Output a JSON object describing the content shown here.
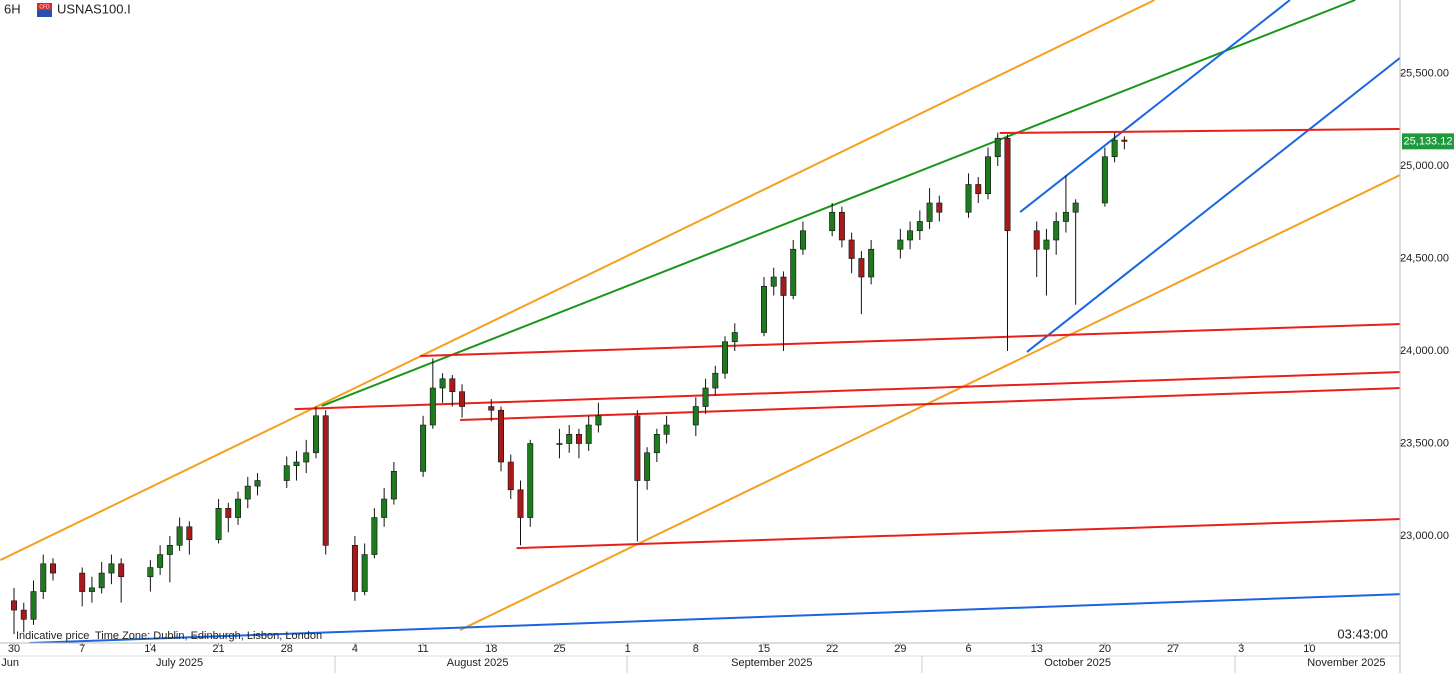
{
  "header": {
    "timeframe": "6H",
    "icon_text": "CFD",
    "symbol": "USNAS100.I"
  },
  "footer": {
    "price_note": "Indicative price",
    "time_zone": "Time Zone: Dublin, Edinburgh, Lisbon, London",
    "clock": "03:43:00"
  },
  "chart_data": {
    "type": "candlestick",
    "x": [
      0,
      1,
      2,
      3,
      4,
      7,
      8,
      9,
      10,
      11,
      14,
      15,
      16,
      17,
      18,
      21,
      22,
      23,
      24,
      25,
      28,
      29,
      30,
      31,
      32,
      35,
      36,
      37,
      38,
      39,
      42,
      43,
      44,
      45,
      46,
      49,
      50,
      51,
      52,
      53,
      56,
      57,
      58,
      59,
      60,
      64,
      65,
      66,
      67,
      70,
      71,
      72,
      73,
      74,
      77,
      78,
      79,
      80,
      81,
      84,
      85,
      86,
      87,
      88,
      91,
      92,
      93,
      94,
      95,
      98,
      99,
      100,
      101,
      102,
      105,
      106,
      107,
      108,
      109,
      112,
      113,
      114
    ],
    "open": [
      22650,
      22600,
      22550,
      22700,
      22850,
      22800,
      22700,
      22720,
      22800,
      22850,
      22780,
      22830,
      22900,
      22950,
      23050,
      22980,
      23150,
      23100,
      23200,
      23270,
      23300,
      23380,
      23400,
      23450,
      23650,
      22950,
      22700,
      22900,
      23100,
      23200,
      23350,
      23600,
      23800,
      23850,
      23780,
      23700,
      23680,
      23400,
      23250,
      23100,
      23500,
      23500,
      23550,
      23500,
      23600,
      23650,
      23300,
      23450,
      23550,
      23600,
      23700,
      23800,
      23880,
      24050,
      24100,
      24350,
      24400,
      24300,
      24550,
      24650,
      24750,
      24600,
      24500,
      24400,
      24550,
      24600,
      24650,
      24700,
      24800,
      24750,
      24900,
      24850,
      25050,
      25150,
      24650,
      24550,
      24600,
      24700,
      24750,
      24800,
      25050,
      25140
    ],
    "high": [
      22720,
      22640,
      22760,
      22900,
      22880,
      22830,
      22780,
      22860,
      22900,
      22880,
      22870,
      22950,
      23000,
      23100,
      23080,
      23200,
      23180,
      23240,
      23320,
      23340,
      23430,
      23460,
      23520,
      23700,
      23680,
      23000,
      22960,
      23150,
      23260,
      23400,
      23650,
      23960,
      23880,
      23870,
      23820,
      23740,
      23700,
      23440,
      23300,
      23520,
      23580,
      23600,
      23580,
      23650,
      23720,
      23680,
      23480,
      23580,
      23650,
      23750,
      23850,
      23920,
      24080,
      24150,
      24400,
      24450,
      24430,
      24600,
      24700,
      24800,
      24780,
      24640,
      24540,
      24600,
      24660,
      24700,
      24760,
      24880,
      24840,
      24960,
      24940,
      25100,
      25180,
      25170,
      24700,
      24660,
      24750,
      24950,
      24820,
      25100,
      25180,
      25160
    ],
    "low": [
      22470,
      22480,
      22520,
      22660,
      22760,
      22620,
      22640,
      22690,
      22740,
      22640,
      22700,
      22790,
      22750,
      22920,
      22900,
      22960,
      23020,
      23060,
      23150,
      23220,
      23260,
      23300,
      23340,
      23420,
      22900,
      22650,
      22680,
      22880,
      23050,
      23170,
      23320,
      23580,
      23720,
      23700,
      23640,
      23620,
      23350,
      23200,
      22950,
      23050,
      23420,
      23450,
      23420,
      23460,
      23560,
      22970,
      23250,
      23400,
      23500,
      23540,
      23660,
      23760,
      23850,
      24000,
      24080,
      24300,
      24000,
      24280,
      24520,
      24620,
      24560,
      24420,
      24200,
      24360,
      24500,
      24550,
      24600,
      24660,
      24700,
      24720,
      24800,
      24820,
      25000,
      24000,
      24400,
      24300,
      24520,
      24640,
      24250,
      24780,
      25020,
      25090
    ],
    "close": [
      22600,
      22550,
      22700,
      22850,
      22800,
      22700,
      22720,
      22800,
      22850,
      22780,
      22830,
      22900,
      22950,
      23050,
      22980,
      23150,
      23100,
      23200,
      23270,
      23300,
      23380,
      23400,
      23450,
      23650,
      22950,
      22700,
      22900,
      23100,
      23200,
      23350,
      23600,
      23800,
      23850,
      23780,
      23700,
      23680,
      23400,
      23250,
      23100,
      23500,
      23500,
      23550,
      23500,
      23600,
      23650,
      23300,
      23450,
      23550,
      23600,
      23700,
      23800,
      23880,
      24050,
      24100,
      24350,
      24400,
      24300,
      24550,
      24650,
      24750,
      24600,
      24500,
      24400,
      24550,
      24600,
      24650,
      24700,
      24800,
      24750,
      24900,
      24850,
      25050,
      25150,
      24650,
      24550,
      24600,
      24700,
      24750,
      24800,
      25050,
      25140,
      25133.12
    ],
    "up_color": "#1f7a1f",
    "down_color": "#a8191c",
    "xlim": [
      -1.44,
      142.3
    ],
    "ylim": [
      22422,
      25897
    ],
    "xticks": [
      {
        "value": 0,
        "label": "30"
      },
      {
        "value": 7,
        "label": "7"
      },
      {
        "value": 14,
        "label": "14"
      },
      {
        "value": 21,
        "label": "21"
      },
      {
        "value": 28,
        "label": "28"
      },
      {
        "value": 35,
        "label": "4"
      },
      {
        "value": 42,
        "label": "11"
      },
      {
        "value": 49,
        "label": "18"
      },
      {
        "value": 56,
        "label": "25"
      },
      {
        "value": 63,
        "label": "1"
      },
      {
        "value": 70,
        "label": "8"
      },
      {
        "value": 77,
        "label": "15"
      },
      {
        "value": 84,
        "label": "22"
      },
      {
        "value": 91,
        "label": "29"
      },
      {
        "value": 98,
        "label": "6"
      },
      {
        "value": 105,
        "label": "13"
      },
      {
        "value": 112,
        "label": "20"
      },
      {
        "value": 119,
        "label": "27"
      },
      {
        "value": 126,
        "label": "3"
      },
      {
        "value": 133,
        "label": "10"
      }
    ],
    "month_ticks": [
      {
        "value": -0.4,
        "label": "Jun"
      },
      {
        "value": 17,
        "label": "July 2025"
      },
      {
        "value": 47.6,
        "label": "August 2025"
      },
      {
        "value": 77.8,
        "label": "September 2025"
      },
      {
        "value": 109.2,
        "label": "October 2025"
      },
      {
        "value": 136.8,
        "label": "November 2025"
      }
    ],
    "yticks": [
      {
        "value": 23000,
        "label": "23,000.00"
      },
      {
        "value": 23500,
        "label": "23,500.00"
      },
      {
        "value": 24000,
        "label": "24,000.00"
      },
      {
        "value": 24500,
        "label": "24,500.00"
      },
      {
        "value": 25000,
        "label": "25,000.00"
      },
      {
        "value": 25500,
        "label": "25,500.00"
      }
    ],
    "last_price": {
      "value": 25133.12,
      "label": "25,133.12"
    },
    "last_price_color": "#1e9a3c",
    "trendlines": [
      {
        "color": "#f5a020",
        "x": [
          -1.4,
          117.1
        ],
        "y": [
          22870,
          25897
        ]
      },
      {
        "color": "#1a961a",
        "x": [
          31.6,
          137.7
        ],
        "y": [
          23703,
          25897
        ]
      },
      {
        "color": "#1a66e0",
        "x": [
          103.3,
          131.0
        ],
        "y": [
          24751,
          25897
        ]
      },
      {
        "color": "#1a66e0",
        "x": [
          104.0,
          142.3
        ],
        "y": [
          23995,
          25584
        ]
      },
      {
        "color": "#f5a020",
        "x": [
          45.8,
          142.3
        ],
        "y": [
          22492,
          24951
        ]
      },
      {
        "color": "#e8201a",
        "x": [
          101.2,
          142.3
        ],
        "y": [
          25178,
          25200
        ]
      },
      {
        "color": "#e8201a",
        "x": [
          41.7,
          142.3
        ],
        "y": [
          23973,
          24146
        ]
      },
      {
        "color": "#e8201a",
        "x": [
          28.8,
          142.3
        ],
        "y": [
          23686,
          23886
        ]
      },
      {
        "color": "#e8201a",
        "x": [
          45.8,
          142.3
        ],
        "y": [
          23627,
          23800
        ]
      },
      {
        "color": "#e8201a",
        "x": [
          51.6,
          142.3
        ],
        "y": [
          22935,
          23092
        ]
      },
      {
        "color": "#1a66e0",
        "x": [
          1.6,
          142.3
        ],
        "y": [
          22422,
          22686
        ]
      }
    ]
  }
}
